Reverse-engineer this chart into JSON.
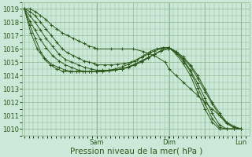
{
  "bg_color": "#cce8d8",
  "grid_color": "#90b890",
  "line_color": "#2d5a1b",
  "marker": "+",
  "markersize": 3,
  "linewidth": 0.7,
  "xlabel": "Pression niveau de la mer( hPa )",
  "xlabel_fontsize": 7.5,
  "tick_fontsize": 6,
  "yticks": [
    1010,
    1011,
    1012,
    1013,
    1014,
    1015,
    1016,
    1017,
    1018,
    1019
  ],
  "xtick_labels": [
    "",
    "Sam",
    "",
    "Dim",
    "",
    "Lun"
  ],
  "xtick_positions": [
    0,
    0.333,
    0.5,
    0.667,
    0.833,
    1.0
  ],
  "xlim": [
    -0.01,
    1.04
  ],
  "ylim": [
    1009.5,
    1019.5
  ],
  "vline_x": [
    0.333,
    0.667,
    1.0
  ],
  "series": [
    {
      "x": [
        0.0,
        0.025,
        0.05,
        0.075,
        0.1,
        0.125,
        0.15,
        0.175,
        0.2,
        0.225,
        0.25,
        0.275,
        0.3,
        0.325,
        0.333,
        0.4,
        0.45,
        0.5,
        0.55,
        0.6,
        0.65,
        0.667,
        0.7,
        0.733,
        0.766,
        0.8,
        0.833,
        0.866,
        0.9,
        0.933,
        0.966,
        1.0
      ],
      "y": [
        1019,
        1019,
        1018.8,
        1018.5,
        1018.2,
        1017.8,
        1017.5,
        1017.2,
        1017.0,
        1016.8,
        1016.6,
        1016.4,
        1016.2,
        1016.1,
        1016.0,
        1016.0,
        1016.0,
        1016.0,
        1015.8,
        1015.5,
        1015.0,
        1014.5,
        1014.0,
        1013.5,
        1013.0,
        1012.5,
        1012.0,
        1011.5,
        1011.0,
        1010.5,
        1010.2,
        1010.0
      ]
    },
    {
      "x": [
        0.0,
        0.025,
        0.05,
        0.075,
        0.1,
        0.125,
        0.15,
        0.175,
        0.2,
        0.225,
        0.25,
        0.275,
        0.3,
        0.325,
        0.333,
        0.37,
        0.4,
        0.43,
        0.46,
        0.49,
        0.52,
        0.55,
        0.58,
        0.61,
        0.64,
        0.667,
        0.7,
        0.733,
        0.766,
        0.8,
        0.833,
        0.866,
        0.9,
        0.933,
        0.966,
        1.0
      ],
      "y": [
        1019,
        1018.8,
        1018.5,
        1018.0,
        1017.5,
        1017.0,
        1016.5,
        1016.0,
        1015.7,
        1015.5,
        1015.3,
        1015.1,
        1015.0,
        1014.9,
        1014.8,
        1014.8,
        1014.8,
        1014.85,
        1014.9,
        1015.0,
        1015.2,
        1015.5,
        1015.8,
        1016.0,
        1016.1,
        1016.1,
        1015.8,
        1015.4,
        1014.8,
        1014.0,
        1013.0,
        1012.0,
        1011.2,
        1010.5,
        1010.1,
        1010.0
      ]
    },
    {
      "x": [
        0.0,
        0.025,
        0.05,
        0.075,
        0.1,
        0.13,
        0.16,
        0.19,
        0.22,
        0.25,
        0.28,
        0.31,
        0.333,
        0.36,
        0.39,
        0.42,
        0.45,
        0.48,
        0.51,
        0.54,
        0.57,
        0.6,
        0.63,
        0.66,
        0.667,
        0.7,
        0.733,
        0.766,
        0.8,
        0.833,
        0.866,
        0.9,
        0.933,
        0.966,
        1.0
      ],
      "y": [
        1019,
        1018.5,
        1018.0,
        1017.4,
        1016.8,
        1016.2,
        1015.6,
        1015.2,
        1015.0,
        1014.8,
        1014.6,
        1014.5,
        1014.4,
        1014.4,
        1014.4,
        1014.45,
        1014.5,
        1014.6,
        1014.8,
        1015.0,
        1015.3,
        1015.6,
        1015.85,
        1016.0,
        1016.1,
        1015.8,
        1015.3,
        1014.7,
        1013.8,
        1012.8,
        1011.9,
        1011.0,
        1010.4,
        1010.1,
        1010.0
      ]
    },
    {
      "x": [
        0.0,
        0.025,
        0.05,
        0.075,
        0.1,
        0.13,
        0.16,
        0.19,
        0.22,
        0.25,
        0.28,
        0.31,
        0.333,
        0.36,
        0.39,
        0.42,
        0.45,
        0.48,
        0.51,
        0.54,
        0.57,
        0.6,
        0.63,
        0.66,
        0.667,
        0.7,
        0.733,
        0.766,
        0.8,
        0.833,
        0.866,
        0.9,
        0.933,
        0.966,
        1.0
      ],
      "y": [
        1019,
        1018.1,
        1017.4,
        1016.7,
        1016.1,
        1015.5,
        1015.1,
        1014.8,
        1014.6,
        1014.4,
        1014.3,
        1014.3,
        1014.3,
        1014.3,
        1014.35,
        1014.4,
        1014.5,
        1014.65,
        1014.85,
        1015.1,
        1015.35,
        1015.6,
        1015.85,
        1016.0,
        1016.1,
        1015.7,
        1015.2,
        1014.4,
        1013.4,
        1012.3,
        1011.2,
        1010.3,
        1010.0,
        1010.0,
        1010.0
      ]
    },
    {
      "x": [
        0.0,
        0.025,
        0.05,
        0.075,
        0.1,
        0.13,
        0.16,
        0.19,
        0.22,
        0.25,
        0.28,
        0.31,
        0.333,
        0.36,
        0.39,
        0.42,
        0.45,
        0.48,
        0.51,
        0.54,
        0.57,
        0.6,
        0.63,
        0.66,
        0.667,
        0.7,
        0.733,
        0.766,
        0.8,
        0.833,
        0.866,
        0.9,
        0.933,
        0.966,
        1.0
      ],
      "y": [
        1019,
        1017.8,
        1016.8,
        1015.8,
        1015.2,
        1014.8,
        1014.6,
        1014.4,
        1014.3,
        1014.3,
        1014.3,
        1014.3,
        1014.3,
        1014.3,
        1014.35,
        1014.4,
        1014.5,
        1014.65,
        1014.85,
        1015.1,
        1015.35,
        1015.6,
        1015.85,
        1016.0,
        1016.1,
        1015.7,
        1015.1,
        1014.3,
        1013.1,
        1011.9,
        1010.8,
        1010.1,
        1010.0,
        1010.0,
        1010.0
      ]
    },
    {
      "x": [
        0.0,
        0.03,
        0.06,
        0.09,
        0.12,
        0.15,
        0.18,
        0.21,
        0.24,
        0.27,
        0.3,
        0.33,
        0.36,
        0.39,
        0.42,
        0.45,
        0.48,
        0.51,
        0.54,
        0.57,
        0.6,
        0.63,
        0.66,
        0.667,
        0.7,
        0.733,
        0.766,
        0.8,
        0.833,
        0.866,
        0.9,
        0.933,
        0.966,
        1.0
      ],
      "y": [
        1019,
        1017.2,
        1016.0,
        1015.3,
        1014.8,
        1014.5,
        1014.3,
        1014.3,
        1014.3,
        1014.3,
        1014.3,
        1014.3,
        1014.35,
        1014.4,
        1014.5,
        1014.65,
        1014.85,
        1015.1,
        1015.35,
        1015.6,
        1015.85,
        1016.0,
        1016.1,
        1016.1,
        1015.6,
        1014.9,
        1014.0,
        1012.7,
        1011.5,
        1010.5,
        1010.0,
        1010.0,
        1010.0,
        1010.0
      ]
    }
  ]
}
